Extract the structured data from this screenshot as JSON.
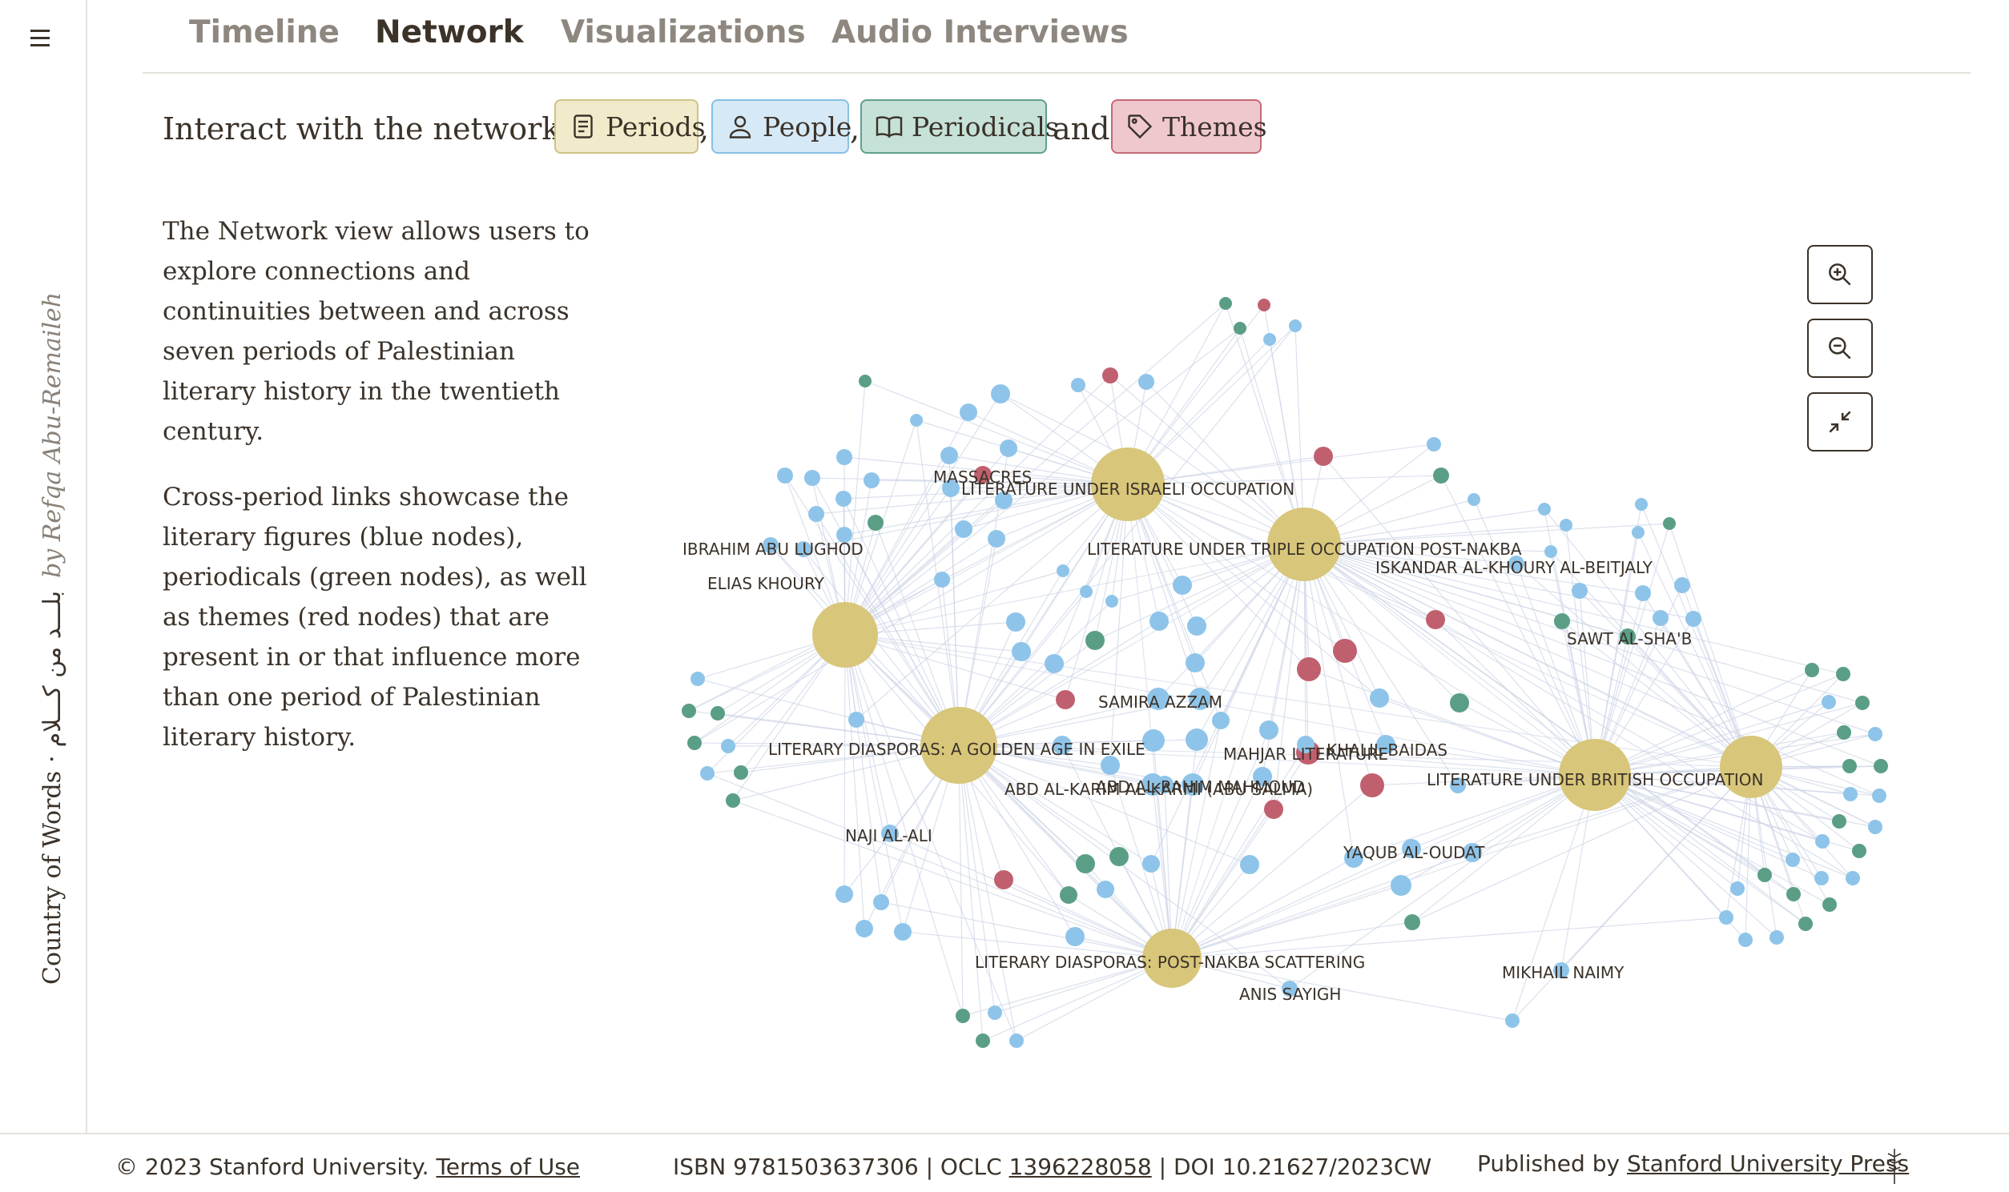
{
  "sidebar": {
    "menu_icon": "hamburger-icon",
    "title_en": "Country of Words",
    "separator": "·",
    "title_ar": "بلـــد من كـــلام",
    "author": "by Refqa Abu-Remaileh"
  },
  "tabs": [
    {
      "label": "Timeline",
      "active": false
    },
    {
      "label": "Network",
      "active": true
    },
    {
      "label": "Visualizations",
      "active": false
    },
    {
      "label": "Audio Interviews",
      "active": false
    }
  ],
  "intro": {
    "prefix": "Interact with the network of",
    "comma": ",",
    "and": "and",
    "chips": {
      "periods": {
        "label": "Periods",
        "icon": "document-icon",
        "color": "#f1ebcb"
      },
      "people": {
        "label": "People",
        "icon": "person-icon",
        "color": "#d6e9f7"
      },
      "periodicals": {
        "label": "Periodicals",
        "icon": "book-icon",
        "color": "#c6e1d8"
      },
      "themes": {
        "label": "Themes",
        "icon": "tag-icon",
        "color": "#efc8ce"
      }
    }
  },
  "description": [
    "The Network view allows users to explore connections and continuities between and across seven periods of Palestinian literary history in the twentieth century.",
    "Cross-period links showcase the literary figures (blue nodes), periodicals (green nodes), as well as themes (red nodes) that are present in or that influence more than one period of Palestinian literary history."
  ],
  "zoom_controls": {
    "zoom_in_icon": "zoom-in-icon",
    "zoom_out_icon": "zoom-out-icon",
    "reset_icon": "collapse-icon"
  },
  "network": {
    "colors": {
      "period": "#d8c67a",
      "person": "#8ec4e9",
      "periodical": "#5b9e86",
      "theme": "#c0606e",
      "edge": "#cdd4e6"
    },
    "labels": {
      "israeli": "LITERATURE UNDER ISRAELI OCCUPATION",
      "massacres": "MASSACRES",
      "triple": "LITERATURE UNDER TRIPLE OCCUPATION POST-NAKBA",
      "beitjaly": "ISKANDAR AL-KHOURY AL-BEITJALY",
      "lughod": "IBRAHIM ABU LUGHOD",
      "khoury": "ELIAS KHOURY",
      "sawt": "SAWT AL-SHA'B",
      "azzam": "SAMIRA AZZAM",
      "golden": "LITERARY DIASPORAS: A GOLDEN AGE IN EXILE",
      "mahjar": "MAHJAR LITERATURE",
      "baidas": "KHALIL BAIDAS",
      "british": "LITERATURE UNDER BRITISH OCCUPATION",
      "salma": "ABD AL-KARIM AL-KARMI (ABU SALMA)",
      "mahmud": "ABD AL-RAHIM MAHMOUD",
      "naji": "NAJI AL-ALI",
      "yaqub": "YAQUB AL-OUDAT",
      "scattering": "LITERARY DIASPORAS: POST-NAKBA SCATTERING",
      "sayigh": "ANIS SAYIGH",
      "naimy": "MIKHAIL NAIMY"
    }
  },
  "footer": {
    "copyright": "© 2023 Stanford University. ",
    "terms": "Terms of Use",
    "isbn": "ISBN 9781503637306 | OCLC ",
    "oclc": "1396228058",
    "doi": " | DOI 10.21627/2023CW",
    "published_by": "Published by ",
    "press": "Stanford University Press",
    "logo_icon": "sup-tree-icon"
  }
}
